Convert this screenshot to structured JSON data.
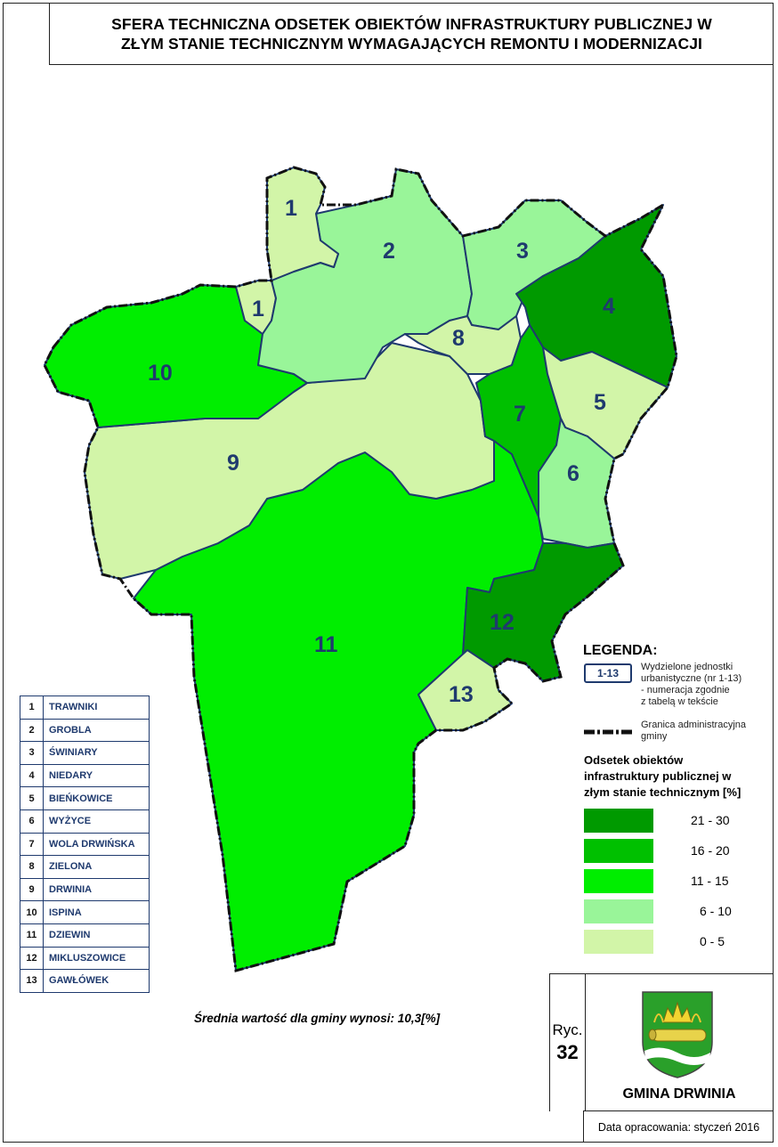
{
  "title": {
    "line1": "SFERA TECHNICZNA ODSETEK OBIEKTÓW INFRASTRUKTURY PUBLICZNEJ W",
    "line2": "ZŁYM STANIE TECHNICZNYM WYMAGAJĄCYCH REMONTU I MODERNIZACJI"
  },
  "colors": {
    "class_21_30": "#009a00",
    "class_16_20": "#00c000",
    "class_11_15": "#00ee00",
    "class_6_10": "#99f599",
    "class_0_5": "#d2f5a8",
    "label": "#1f3a6e",
    "border": "#1f3a6e"
  },
  "regions": [
    {
      "num": "1",
      "label": "1",
      "name": "TRAWNIKI",
      "class": "0 - 5"
    },
    {
      "num": "2",
      "label": "2",
      "name": "GROBLA",
      "class": "6 - 10"
    },
    {
      "num": "3",
      "label": "3",
      "name": "ŚWINIARY",
      "class": "6 - 10"
    },
    {
      "num": "4",
      "label": "4",
      "name": "NIEDARY",
      "class": "21 - 30"
    },
    {
      "num": "5",
      "label": "5",
      "name": "BIEŃKOWICE",
      "class": "0 - 5"
    },
    {
      "num": "6",
      "label": "6",
      "name": "WYŻYCE",
      "class": "6 - 10"
    },
    {
      "num": "7",
      "label": "7",
      "name": "WOLA DRWIŃSKA",
      "class": "16 - 20"
    },
    {
      "num": "8",
      "label": "8",
      "name": "ZIELONA",
      "class": "0 - 5"
    },
    {
      "num": "9",
      "label": "9",
      "name": "DRWINIA",
      "class": "0 - 5"
    },
    {
      "num": "10",
      "label": "10",
      "name": "ISPINA",
      "class": "11 - 15"
    },
    {
      "num": "11",
      "label": "11",
      "name": "DZIEWIN",
      "class": "11 - 15"
    },
    {
      "num": "12",
      "label": "12",
      "name": "MIKLUSZOWICE",
      "class": "21 - 30"
    },
    {
      "num": "13",
      "label": "13",
      "name": "GAWŁÓWEK",
      "class": "0 - 5"
    }
  ],
  "legend": {
    "title": "LEGENDA:",
    "unit_box": "1-13",
    "unit_desc_1": "Wydzielone jednostki",
    "unit_desc_2": "urbanistyczne (nr 1-13)",
    "unit_desc_3": "- numeracja zgodnie",
    "unit_desc_4": "z tabelą w tekście",
    "boundary_1": "Granica administracyjna",
    "boundary_2": "gminy",
    "scale_title_1": "Odsetek obiektów",
    "scale_title_2": "infrastruktury publicznej w",
    "scale_title_3": "złym stanie technicznym [%]",
    "classes": [
      "21 - 30",
      "16 - 20",
      "11 - 15",
      "6 - 10",
      "0 - 5"
    ]
  },
  "average_note": "Średnia wartość dla gminy wynosi: 10,3[%]",
  "figure": {
    "word": "Ryc.",
    "number": "32"
  },
  "municipality": "GMINA DRWINIA",
  "date": "Data opracowania: styczeń 2016",
  "crest_icon": "gmina-drwinia-coat-of-arms"
}
